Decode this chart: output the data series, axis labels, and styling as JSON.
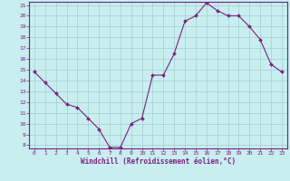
{
  "hours": [
    0,
    1,
    2,
    3,
    4,
    5,
    6,
    7,
    8,
    9,
    10,
    11,
    12,
    13,
    14,
    15,
    16,
    17,
    18,
    19,
    20,
    21,
    22,
    23
  ],
  "values": [
    14.8,
    13.8,
    12.8,
    11.8,
    11.5,
    10.5,
    9.5,
    7.8,
    7.8,
    10.0,
    10.5,
    14.5,
    14.5,
    16.5,
    19.5,
    20.0,
    21.2,
    20.5,
    20.0,
    20.0,
    19.0,
    17.8,
    15.5,
    14.8
  ],
  "line_color": "#7b2080",
  "marker_color": "#7b2080",
  "bg_color": "#c8eef0",
  "grid_color": "#a0cece",
  "xlabel": "Windchill (Refroidissement éolien,°C)",
  "xlabel_color": "#7b2080",
  "tick_color": "#7b2080",
  "ylim_min": 8,
  "ylim_max": 21,
  "yticks": [
    8,
    9,
    10,
    11,
    12,
    13,
    14,
    15,
    16,
    17,
    18,
    19,
    20,
    21
  ],
  "xticks": [
    0,
    1,
    2,
    3,
    4,
    5,
    6,
    7,
    8,
    9,
    10,
    11,
    12,
    13,
    14,
    15,
    16,
    17,
    18,
    19,
    20,
    21,
    22,
    23
  ],
  "border_color": "#7b2080"
}
